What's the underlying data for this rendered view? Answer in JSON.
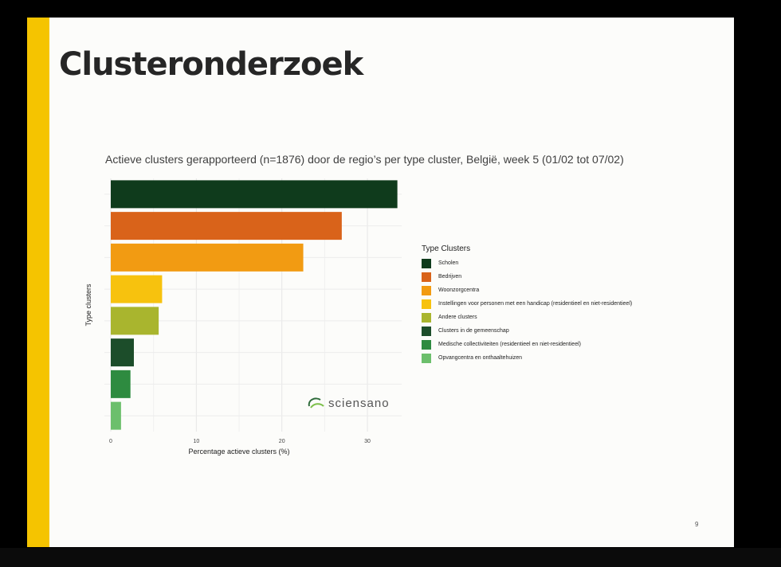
{
  "slide": {
    "title": "Clusteronderzoek",
    "page_number": "9",
    "accent_color": "#f5c400"
  },
  "logo": {
    "text": "sciensano",
    "icon": "sciensano-logo-icon"
  },
  "chart_data": {
    "type": "bar",
    "orientation": "horizontal",
    "title": "Actieve clusters gerapporteerd (n=1876) door de regio’s per type cluster, België, week 5 (01/02 tot 07/02)",
    "xlabel": "Percentage actieve clusters (%)",
    "ylabel": "Type clusters",
    "xlim": [
      0,
      34
    ],
    "xticks": [
      0,
      10,
      20,
      30
    ],
    "grid": true,
    "legend_title": "Type Clusters",
    "legend_position": "right",
    "categories": [
      "Scholen",
      "Bedrijven",
      "Woonzorgcentra",
      "Instellingen voor personen met een handicap (residentieel en niet-residentieel)",
      "Andere clusters",
      "Clusters in de gemeenschap",
      "Medische collectiviteiten (residentieel en niet-residentieel)",
      "Opvangcentra en onthaaltehuizen"
    ],
    "values": [
      33.5,
      27,
      22.5,
      6,
      5.6,
      2.7,
      2.3,
      1.2
    ],
    "colors": [
      "#0f3b1c",
      "#d9631a",
      "#f29b12",
      "#f7c20e",
      "#a9b52e",
      "#1c4d2a",
      "#2e8b40",
      "#6cbf6c"
    ]
  }
}
